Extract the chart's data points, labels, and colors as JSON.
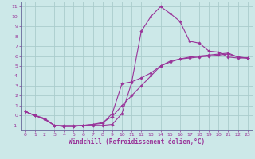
{
  "xlabel": "Windchill (Refroidissement éolien,°C)",
  "background_color": "#cce8e8",
  "grid_color": "#aacccc",
  "line_color": "#993399",
  "spine_color": "#666699",
  "xlim": [
    -0.5,
    23.5
  ],
  "ylim": [
    -1.5,
    11.5
  ],
  "xticks": [
    0,
    1,
    2,
    3,
    4,
    5,
    6,
    7,
    8,
    9,
    10,
    11,
    12,
    13,
    14,
    15,
    16,
    17,
    18,
    19,
    20,
    21,
    22,
    23
  ],
  "yticks": [
    -1,
    0,
    1,
    2,
    3,
    4,
    5,
    6,
    7,
    8,
    9,
    10,
    11
  ],
  "line1_x": [
    0,
    1,
    2,
    3,
    4,
    5,
    6,
    7,
    8,
    9,
    10,
    11,
    12,
    13,
    14,
    15,
    16,
    17,
    18,
    19,
    20,
    21,
    22,
    23
  ],
  "line1_y": [
    0.4,
    0.0,
    -0.3,
    -1.0,
    -1.0,
    -1.0,
    -1.0,
    -1.0,
    -1.0,
    -0.9,
    0.2,
    3.3,
    8.5,
    10.0,
    11.0,
    10.3,
    9.5,
    7.5,
    7.3,
    6.5,
    6.4,
    5.9,
    5.8,
    5.8
  ],
  "line2_x": [
    0,
    1,
    2,
    3,
    4,
    5,
    6,
    7,
    8,
    9,
    10,
    11,
    12,
    13,
    14,
    15,
    16,
    17,
    18,
    19,
    20,
    21,
    22,
    23
  ],
  "line2_y": [
    0.4,
    0.0,
    -0.4,
    -1.0,
    -1.1,
    -1.1,
    -1.0,
    -0.9,
    -0.8,
    0.2,
    3.2,
    3.4,
    3.8,
    4.3,
    5.0,
    5.4,
    5.7,
    5.9,
    6.0,
    6.1,
    6.2,
    6.3,
    5.9,
    5.8
  ],
  "line3_x": [
    0,
    1,
    2,
    3,
    4,
    5,
    6,
    7,
    8,
    9,
    10,
    11,
    12,
    13,
    14,
    15,
    16,
    17,
    18,
    19,
    20,
    21,
    22,
    23
  ],
  "line3_y": [
    0.4,
    0.0,
    -0.3,
    -1.0,
    -1.1,
    -1.1,
    -1.0,
    -0.9,
    -0.7,
    -0.1,
    1.0,
    2.0,
    3.0,
    4.0,
    5.0,
    5.5,
    5.7,
    5.8,
    5.9,
    6.0,
    6.1,
    6.2,
    5.9,
    5.8
  ],
  "tick_fontsize": 4.5,
  "xlabel_fontsize": 5.5
}
